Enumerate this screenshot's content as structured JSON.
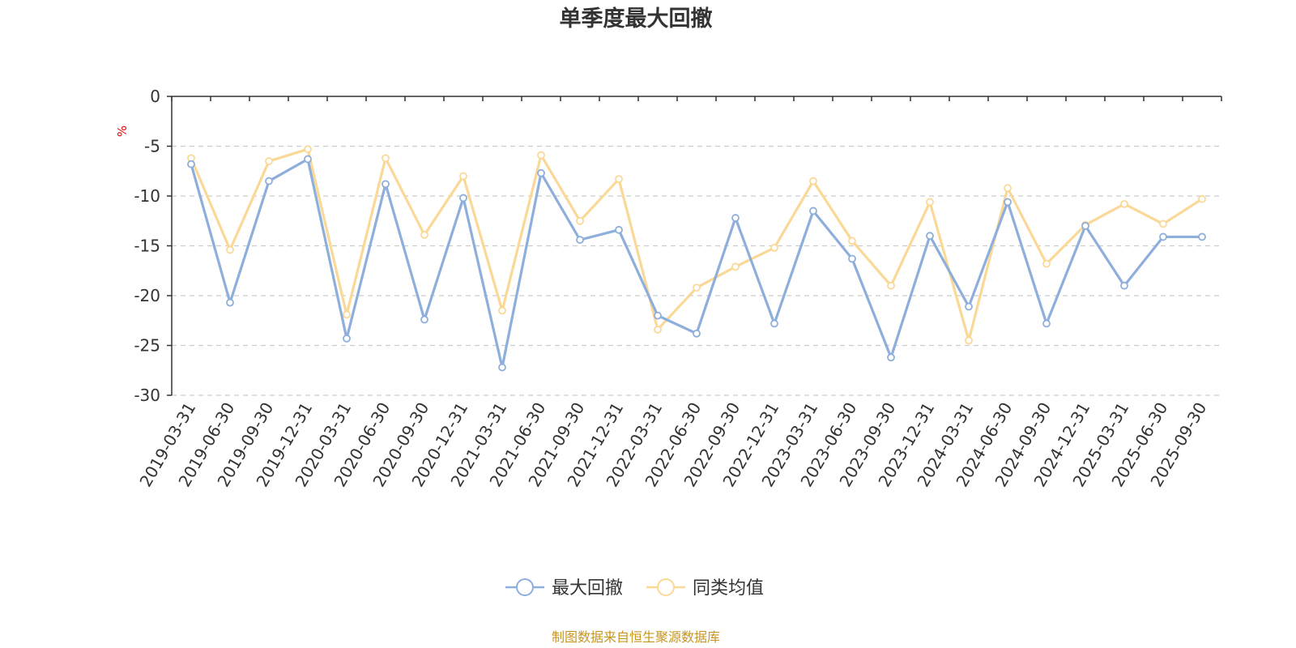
{
  "chart_data": {
    "type": "line",
    "title": "单季度最大回撤",
    "ylabel": "%",
    "ylim": [
      -30,
      0
    ],
    "yticks": [
      0,
      -5,
      -10,
      -15,
      -20,
      -25,
      -30
    ],
    "grid": true,
    "legend_position": "bottom-center",
    "categories": [
      "2019-03-31",
      "2019-06-30",
      "2019-09-30",
      "2019-12-31",
      "2020-03-31",
      "2020-06-30",
      "2020-09-30",
      "2020-12-31",
      "2021-03-31",
      "2021-06-30",
      "2021-09-30",
      "2021-12-31",
      "2022-03-31",
      "2022-06-30",
      "2022-09-30",
      "2022-12-31",
      "2023-03-31",
      "2023-06-30",
      "2023-09-30",
      "2023-12-31",
      "2024-03-31",
      "2024-06-30",
      "2024-09-30",
      "2024-12-31",
      "2025-03-31",
      "2025-06-30",
      "2025-09-30"
    ],
    "series": [
      {
        "name": "最大回撤",
        "color": "#8eaedb",
        "values": [
          -6.8,
          -20.7,
          -8.5,
          -6.3,
          -24.3,
          -8.8,
          -22.4,
          -10.2,
          -27.2,
          -7.7,
          -14.4,
          -13.4,
          -22.0,
          -23.8,
          -12.2,
          -22.8,
          -11.5,
          -16.3,
          -26.2,
          -14.0,
          -21.1,
          -10.6,
          -22.8,
          -13.0,
          -19.0,
          -14.1,
          -14.1
        ]
      },
      {
        "name": "同类均值",
        "color": "#fad897",
        "values": [
          -6.2,
          -15.4,
          -6.5,
          -5.3,
          -21.9,
          -6.2,
          -13.9,
          -8.0,
          -21.5,
          -5.9,
          -12.5,
          -8.3,
          -23.4,
          -19.2,
          -17.1,
          -15.2,
          -8.5,
          -14.5,
          -19.0,
          -10.6,
          -24.5,
          -9.2,
          -16.8,
          -12.9,
          -10.8,
          -12.8,
          -10.3
        ]
      }
    ]
  },
  "footer": {
    "source": "制图数据来自恒生聚源数据库",
    "source_color": "#c8961e"
  }
}
